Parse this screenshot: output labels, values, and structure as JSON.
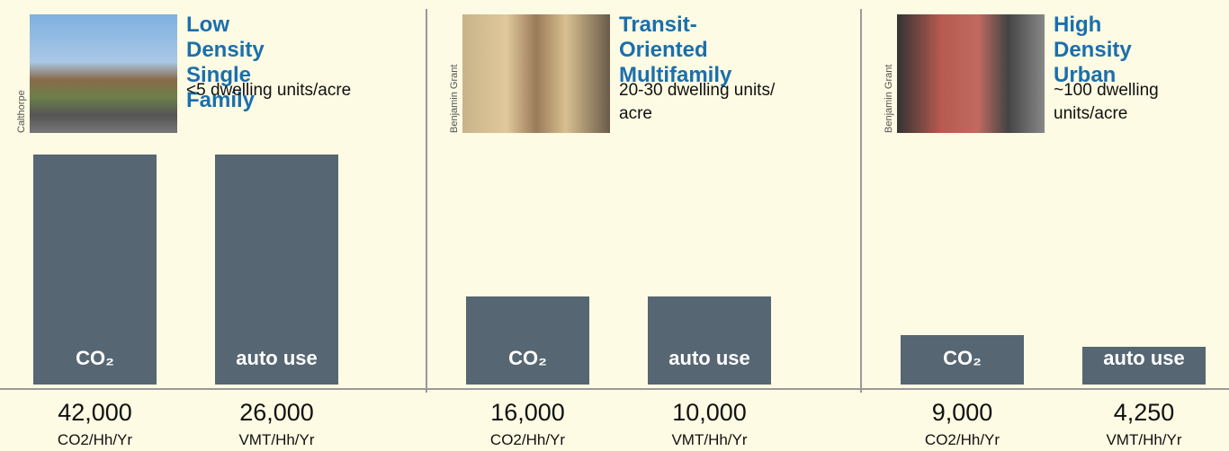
{
  "chart_data": {
    "type": "bar",
    "groups": [
      {
        "title": "Low Density Single Family",
        "subtitle": "<5 dwelling units/acre",
        "credit": "Calthorpe"
      },
      {
        "title": "Transit-Oriented Multifamily",
        "subtitle": "20-30 dwelling units/ acre",
        "credit": "Benjamin Grant"
      },
      {
        "title": "High Density Urban",
        "subtitle": "~100 dwelling units/acre",
        "credit": "Benjamin Grant"
      }
    ],
    "series": [
      {
        "name": "CO₂",
        "unit": "CO2/Hh/Yr",
        "values": [
          42000,
          16000,
          9000
        ],
        "value_labels": [
          "42,000",
          "16,000",
          "9,000"
        ],
        "ylim": [
          0,
          42000
        ]
      },
      {
        "name": "auto use",
        "unit": "VMT/Hh/Yr",
        "values": [
          26000,
          10000,
          4250
        ],
        "value_labels": [
          "26,000",
          "10,000",
          "4,250"
        ],
        "ylim": [
          0,
          26000
        ]
      }
    ],
    "color": "#566673"
  }
}
